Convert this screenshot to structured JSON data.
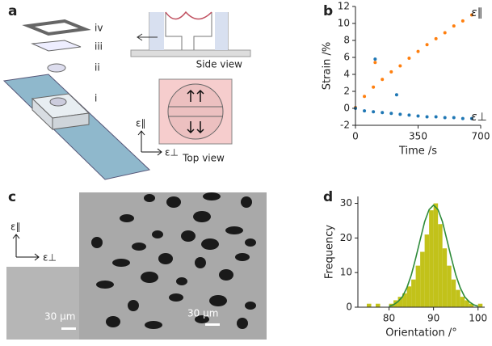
{
  "figure": {
    "panel_labels": [
      "a",
      "b",
      "c",
      "d"
    ],
    "layer_labels": [
      "iv",
      "iii",
      "ii",
      "i"
    ],
    "side_view": "Side view",
    "top_view": "Top view",
    "axes_a": [
      "ε∥",
      "ε⊥"
    ],
    "axes_c": [
      "ε∥",
      "ε⊥"
    ],
    "scale_bars": [
      "30 µm",
      "30 µm"
    ]
  },
  "chart_data": [
    {
      "type": "scatter",
      "xlabel": "Time /s",
      "ylabel": "Strain /%",
      "xlim": [
        0,
        700
      ],
      "xticks": [
        0,
        350,
        700
      ],
      "ylim": [
        -2,
        12
      ],
      "yticks": [
        -2,
        0,
        2,
        4,
        6,
        8,
        10,
        12
      ],
      "series": [
        {
          "name": "ε∥",
          "color": "#ff7f0e",
          "x": [
            0,
            50,
            100,
            150,
            200,
            250,
            300,
            350,
            400,
            450,
            500,
            550,
            600,
            650,
            110
          ],
          "values": [
            0.1,
            1.4,
            2.5,
            3.4,
            4.3,
            5.0,
            5.9,
            6.7,
            7.5,
            8.2,
            8.9,
            9.7,
            10.3,
            11.0,
            5.4
          ]
        },
        {
          "name": "ε⊥",
          "color": "#1f77b4",
          "x": [
            0,
            50,
            100,
            150,
            200,
            250,
            300,
            350,
            400,
            450,
            500,
            550,
            600,
            650,
            110,
            230
          ],
          "values": [
            0.0,
            -0.3,
            -0.4,
            -0.5,
            -0.6,
            -0.7,
            -0.8,
            -0.9,
            -1.0,
            -1.0,
            -1.1,
            -1.1,
            -1.2,
            -1.2,
            5.8,
            1.6
          ]
        }
      ]
    },
    {
      "type": "histogram",
      "xlabel": "Orientation /°",
      "ylabel": "Frequency",
      "color": "#c2c21a",
      "bins": [
        75,
        76,
        77,
        78,
        79,
        80,
        81,
        82,
        83,
        84,
        85,
        86,
        87,
        88,
        89,
        90,
        91,
        92,
        93,
        94,
        95,
        96,
        97,
        98,
        99,
        100,
        101
      ],
      "counts": [
        1,
        0,
        1,
        0,
        0,
        1,
        2,
        3,
        4,
        6,
        8,
        12,
        16,
        21,
        28,
        30,
        24,
        17,
        12,
        8,
        5,
        3,
        2,
        1,
        0,
        1
      ],
      "xlim": [
        73,
        101.5
      ],
      "xticks": [
        80,
        90,
        100
      ],
      "ylim": [
        0,
        32
      ],
      "yticks": [
        0,
        10,
        20,
        30
      ],
      "fit": {
        "color": "#2e8b3a",
        "x": [
          80,
          81,
          82,
          83,
          84,
          85,
          86,
          87,
          88,
          89,
          90,
          91,
          92,
          93,
          94,
          95,
          96,
          97,
          98,
          99,
          100
        ],
        "values": [
          0.3,
          0.7,
          1.6,
          3.0,
          5.6,
          9.3,
          14.2,
          19.5,
          24.7,
          28.2,
          29.5,
          28.2,
          24.7,
          19.5,
          14.2,
          9.3,
          5.6,
          3.0,
          1.6,
          0.7,
          0.3
        ]
      }
    }
  ]
}
